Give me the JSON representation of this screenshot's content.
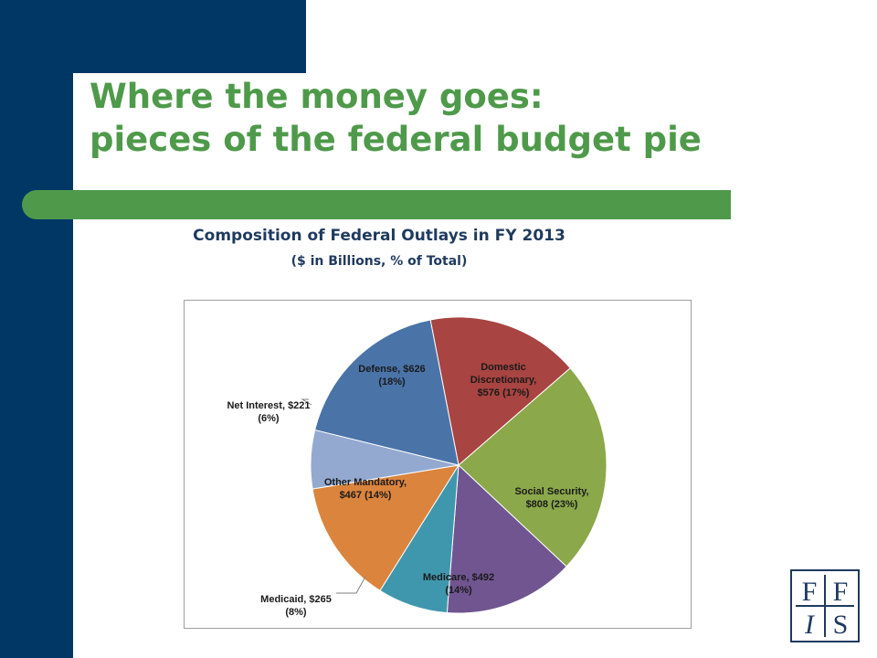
{
  "slide": {
    "title_line1": "Where the money goes:",
    "title_line2": "pieces of the federal budget pie",
    "logo_text": "FFIS"
  },
  "colors": {
    "navy": "#003764",
    "green": "#4e9a4a",
    "chart_title": "#1f3a5f"
  },
  "chart_data": {
    "type": "pie",
    "title": "Composition of Federal Outlays in FY 2013",
    "subtitle": "($ in Billions, % of Total)",
    "start_angle_deg": -11,
    "slices": [
      {
        "label_lines": [
          "Domestic",
          "Discretionary,",
          "$576 (17%)"
        ],
        "value": 576,
        "percent": 17,
        "color": "#a84441",
        "label_placement": "inside"
      },
      {
        "label_lines": [
          "Social Security,",
          "$808 (23%)"
        ],
        "value": 808,
        "percent": 23,
        "color": "#8ba84a",
        "label_placement": "inside"
      },
      {
        "label_lines": [
          "Medicare, $492",
          "(14%)"
        ],
        "value": 492,
        "percent": 14,
        "color": "#705590",
        "label_placement": "inside"
      },
      {
        "label_lines": [
          "Medicaid, $265",
          "(8%)"
        ],
        "value": 265,
        "percent": 8,
        "color": "#3f97ad",
        "label_placement": "outside"
      },
      {
        "label_lines": [
          "Other Mandatory,",
          "$467 (14%)"
        ],
        "value": 467,
        "percent": 14,
        "color": "#db843d",
        "label_placement": "inside"
      },
      {
        "label_lines": [
          "Net Interest, $221",
          "(6%)"
        ],
        "value": 221,
        "percent": 6,
        "color": "#93a9d0",
        "label_placement": "outside"
      },
      {
        "label_lines": [
          "Defense, $626",
          "(18%)"
        ],
        "value": 626,
        "percent": 18,
        "color": "#4a73a8",
        "label_placement": "inside"
      }
    ],
    "legend": "none"
  }
}
